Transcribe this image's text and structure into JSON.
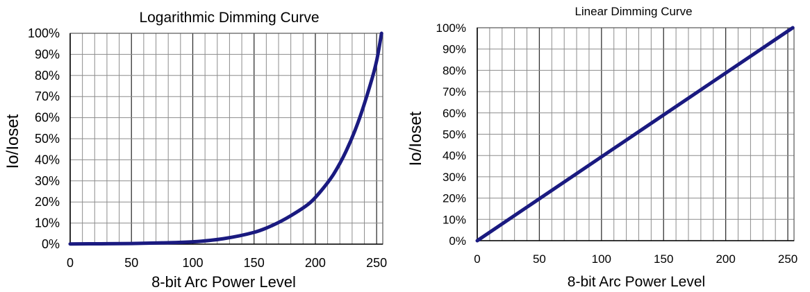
{
  "colors": {
    "line": "#1a1a80",
    "grid": "#8c8c8c",
    "axis": "#000000"
  },
  "chart_data": [
    {
      "type": "line",
      "title": "Logarithmic Dimming Curve",
      "xlabel": "8-bit Arc Power Level",
      "ylabel": "Io/Ioset",
      "xlim": [
        0,
        255
      ],
      "ylim": [
        0,
        100
      ],
      "xticks": [
        0,
        50,
        100,
        150,
        200,
        250
      ],
      "yticks": [
        "0%",
        "10%",
        "20%",
        "30%",
        "40%",
        "50%",
        "60%",
        "70%",
        "80%",
        "90%",
        "100%"
      ],
      "grid": true,
      "series": [
        {
          "x": [
            0,
            25,
            50,
            75,
            100,
            125,
            150,
            165,
            180,
            195,
            205,
            215,
            225,
            235,
            245,
            250,
            254
          ],
          "y": [
            0.1,
            0.18,
            0.3,
            0.6,
            1.1,
            2.6,
            5.6,
            8.9,
            13.5,
            19.3,
            25.5,
            33.3,
            44,
            58,
            76,
            87,
            100
          ]
        }
      ]
    },
    {
      "type": "line",
      "title": "Linear Dimming Curve",
      "xlabel": "8-bit Arc Power Level",
      "ylabel": "Io/Ioset",
      "xlim": [
        0,
        255
      ],
      "ylim": [
        0,
        100
      ],
      "xticks": [
        0,
        50,
        100,
        150,
        200,
        250
      ],
      "yticks": [
        "0%",
        "10%",
        "20%",
        "30%",
        "40%",
        "50%",
        "60%",
        "70%",
        "80%",
        "90%",
        "100%"
      ],
      "grid": true,
      "series": [
        {
          "x": [
            0,
            254
          ],
          "y": [
            0,
            100
          ]
        }
      ]
    }
  ]
}
